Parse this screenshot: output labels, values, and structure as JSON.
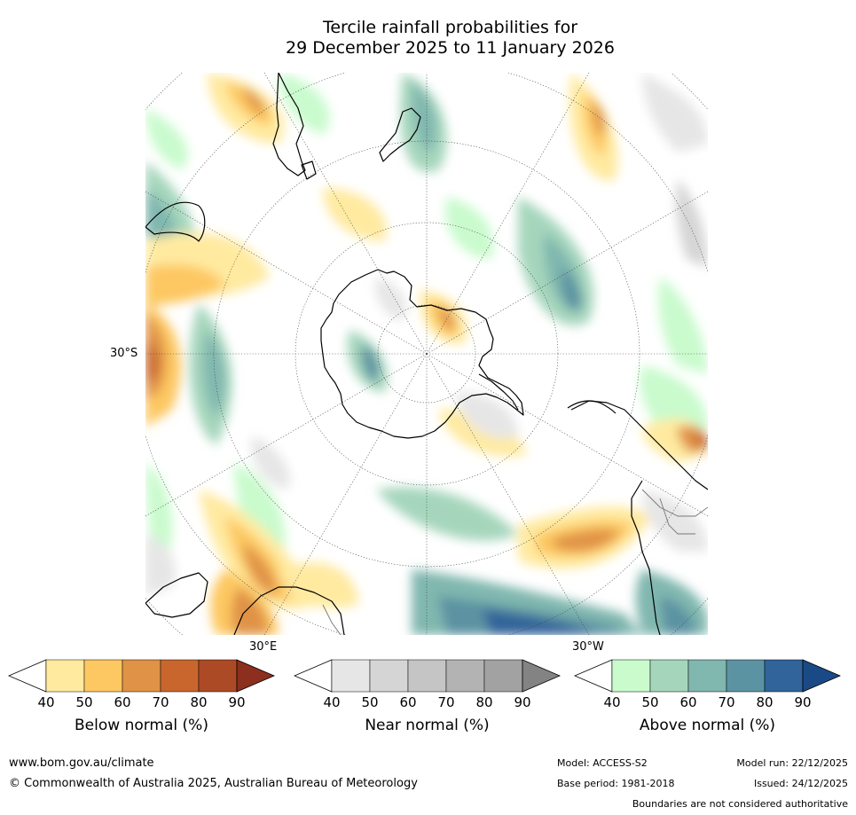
{
  "title": {
    "line1": "Tercile rainfall probabilities for",
    "line2": "29 December 2025 to 11 January 2026"
  },
  "map": {
    "projection": "south polar stereographic",
    "labels": {
      "lat": "30°S",
      "lon_east": "30°E",
      "lon_west": "30°W"
    },
    "colors": {
      "below": [
        "#ffeaa0",
        "#fdc862",
        "#e09346",
        "#c8662e",
        "#ad4a26",
        "#8c2f1e"
      ],
      "near": [
        "#e6e6e6",
        "#d5d5d5",
        "#c5c5c5",
        "#b3b3b3",
        "#a2a2a2",
        "#838383"
      ],
      "above": [
        "#c9fbcd",
        "#a5d6bc",
        "#80b7af",
        "#5b93a2",
        "#30649a",
        "#1a4a85"
      ]
    }
  },
  "colorbars": [
    {
      "name": "below",
      "label": "Below normal (%)",
      "ticks": [
        "40",
        "50",
        "60",
        "70",
        "80",
        "90"
      ]
    },
    {
      "name": "near",
      "label": "Near normal (%)",
      "ticks": [
        "40",
        "50",
        "60",
        "70",
        "80",
        "90"
      ]
    },
    {
      "name": "above",
      "label": "Above normal (%)",
      "ticks": [
        "40",
        "50",
        "60",
        "70",
        "80",
        "90"
      ]
    }
  ],
  "footer": {
    "website": "www.bom.gov.au/climate",
    "copyright": "© Commonwealth of Australia 2025, Australian Bureau of Meteorology",
    "model": "Model: ACCESS-S2",
    "model_run": "Model run: 22/12/2025",
    "base_period": "Base period: 1981-2018",
    "issued": "Issued: 24/12/2025",
    "disclaimer": "Boundaries are not considered authoritative"
  }
}
